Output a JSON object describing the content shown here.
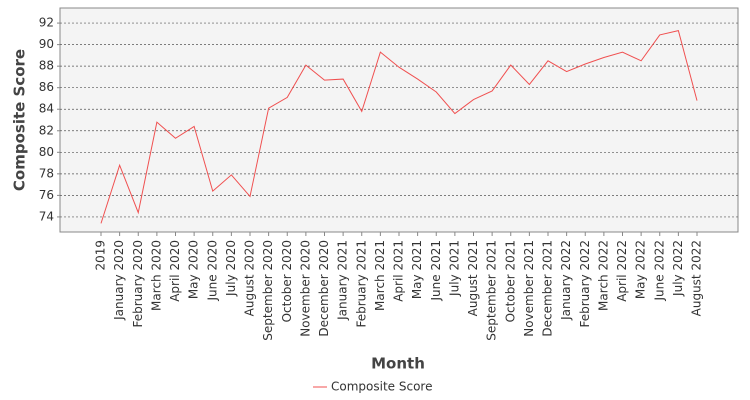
{
  "chart_data": {
    "type": "line",
    "x_label": "Month",
    "y_label": "Composite Score",
    "categories": [
      "2019",
      "January 2020",
      "February 2020",
      "March 2020",
      "April 2020",
      "May 2020",
      "June 2020",
      "July 2020",
      "August 2020",
      "September 2020",
      "October 2020",
      "November 2020",
      "December 2020",
      "January 2021",
      "February 2021",
      "March 2021",
      "April 2021",
      "May 2021",
      "June 2021",
      "July 2021",
      "August 2021",
      "September 2021",
      "October 2021",
      "November 2021",
      "December 2021",
      "January 2022",
      "February 2022",
      "March 2022",
      "April 2022",
      "May 2022",
      "June 2022",
      "July 2022",
      "August 2022"
    ],
    "series": [
      {
        "name": "Composite Score",
        "color": "#f05050",
        "values": [
          73.4,
          78.8,
          74.4,
          82.8,
          81.3,
          82.4,
          76.4,
          77.9,
          75.9,
          84.1,
          85.1,
          88.1,
          86.7,
          86.8,
          83.8,
          89.3,
          87.9,
          86.8,
          85.6,
          83.6,
          84.9,
          85.7,
          88.1,
          86.3,
          88.5,
          87.5,
          88.2,
          88.8,
          89.3,
          88.5,
          90.9,
          91.3,
          84.8
        ]
      }
    ],
    "ylim": [
      72.6,
      93.4
    ],
    "yticks": [
      74,
      76,
      78,
      80,
      82,
      84,
      86,
      88,
      90,
      92
    ],
    "grid": true,
    "legend": "bottom"
  }
}
